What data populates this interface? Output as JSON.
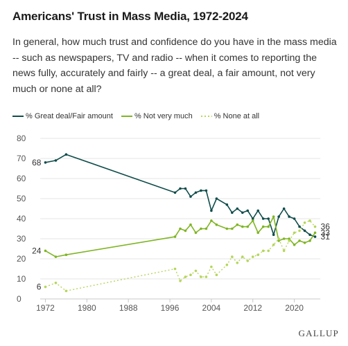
{
  "title": "Americans' Trust in Mass Media, 1972-2024",
  "subtitle": "In general, how much trust and confidence do you have in the mass media -- such as newspapers, TV and radio -- when it comes to reporting the news fully, accurately and fairly -- a great deal, a fair amount, not very much or none at all?",
  "logo_text": "GALLUP",
  "colors": {
    "great_deal": "#0e4c4a",
    "not_very_much": "#7fb523",
    "none_at_all": "#b5d65a",
    "grid": "#e4e4e4",
    "axis": "#c8c8c8"
  },
  "chart_data": {
    "type": "line",
    "title": "Americans' Trust in Mass Media, 1972-2024",
    "xlabel": "",
    "ylabel": "",
    "xlim": [
      1971,
      2025
    ],
    "ylim": [
      0,
      80
    ],
    "x_ticks": [
      1972,
      1980,
      1988,
      1996,
      2004,
      2012,
      2020
    ],
    "y_ticks": [
      0,
      10,
      20,
      30,
      40,
      50,
      60,
      70,
      80
    ],
    "grid": true,
    "legend_position": "top-left",
    "series": [
      {
        "name": "% Great deal/Fair amount",
        "color": "#0e4c4a",
        "style": "solid",
        "x": [
          1972,
          1974,
          1976,
          1997,
          1998,
          1999,
          2000,
          2001,
          2002,
          2003,
          2004,
          2005,
          2007,
          2008,
          2009,
          2010,
          2011,
          2012,
          2013,
          2014,
          2015,
          2016,
          2017,
          2018,
          2019,
          2020,
          2021,
          2022,
          2023,
          2024
        ],
        "y": [
          68,
          69,
          72,
          53,
          55,
          55,
          51,
          53,
          54,
          54,
          44,
          50,
          47,
          43,
          45,
          43,
          44,
          40,
          44,
          40,
          40,
          32,
          41,
          45,
          41,
          40,
          36,
          34,
          32,
          31
        ]
      },
      {
        "name": "% Not very much",
        "color": "#7fb523",
        "style": "solid",
        "x": [
          1972,
          1974,
          1976,
          1997,
          1998,
          1999,
          2000,
          2001,
          2002,
          2003,
          2004,
          2005,
          2007,
          2008,
          2009,
          2010,
          2011,
          2012,
          2013,
          2014,
          2015,
          2016,
          2017,
          2018,
          2019,
          2020,
          2021,
          2022,
          2023,
          2024
        ],
        "y": [
          24,
          21,
          22,
          31,
          35,
          34,
          37,
          33,
          35,
          35,
          39,
          37,
          35,
          35,
          37,
          36,
          36,
          39,
          33,
          36,
          36,
          41,
          29,
          30,
          30,
          27,
          29,
          28,
          29,
          33
        ]
      },
      {
        "name": "% None at all",
        "color": "#b5d65a",
        "style": "dotted",
        "x": [
          1972,
          1974,
          1976,
          1997,
          1998,
          1999,
          2000,
          2001,
          2002,
          2003,
          2004,
          2005,
          2007,
          2008,
          2009,
          2010,
          2011,
          2012,
          2013,
          2014,
          2015,
          2016,
          2017,
          2018,
          2019,
          2020,
          2021,
          2022,
          2023,
          2024
        ],
        "y": [
          6,
          8,
          4,
          15,
          9,
          11,
          12,
          14,
          11,
          11,
          16,
          12,
          17,
          21,
          18,
          21,
          19,
          21,
          22,
          24,
          24,
          27,
          30,
          24,
          29,
          33,
          34,
          38,
          39,
          36
        ]
      }
    ],
    "annotations": [
      {
        "series": 0,
        "x": 1972,
        "text": "68",
        "side": "left"
      },
      {
        "series": 1,
        "x": 1972,
        "text": "24",
        "side": "left"
      },
      {
        "series": 2,
        "x": 1972,
        "text": "6",
        "side": "left"
      },
      {
        "series": 2,
        "x": 2024,
        "text": "36",
        "side": "right"
      },
      {
        "series": 1,
        "x": 2024,
        "text": "33",
        "side": "right"
      },
      {
        "series": 0,
        "x": 2024,
        "text": "31",
        "side": "right"
      }
    ]
  }
}
